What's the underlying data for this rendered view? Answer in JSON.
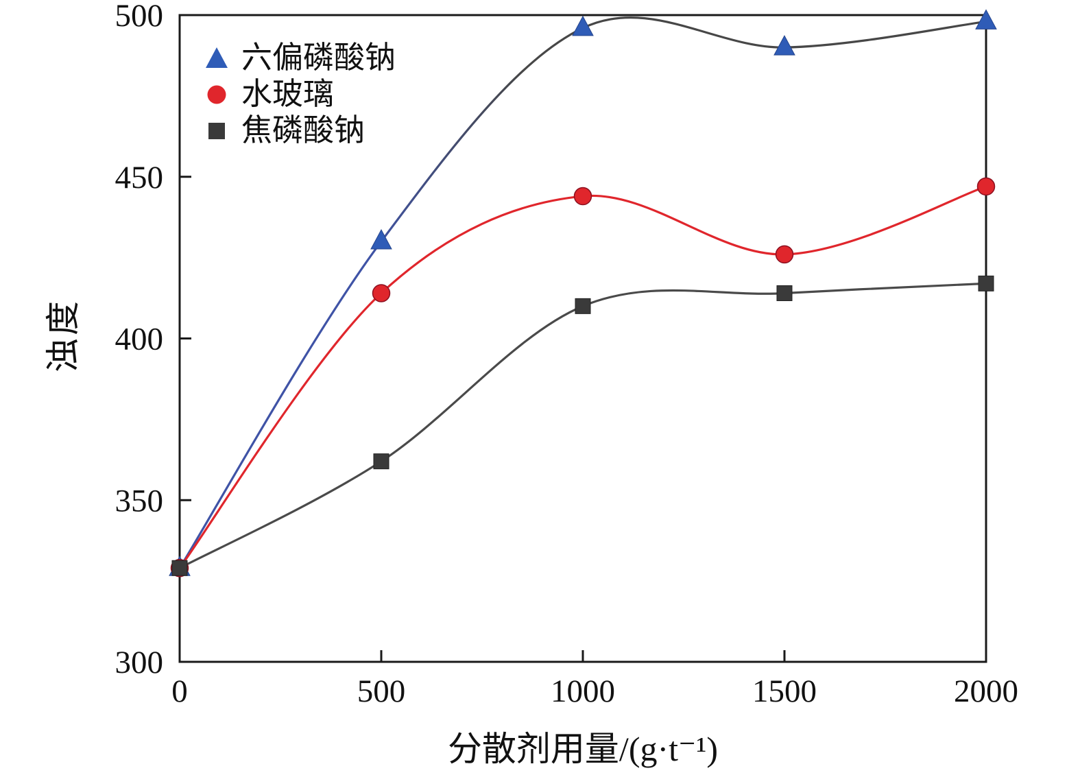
{
  "chart_data": {
    "type": "line",
    "title": "",
    "xlabel": "分散剂用量/(g·t⁻¹)",
    "ylabel": "浊度",
    "xlim": [
      0,
      2000
    ],
    "ylim": [
      300,
      500
    ],
    "x_ticks": [
      "0",
      "500",
      "1000",
      "1500",
      "2000"
    ],
    "y_ticks": [
      "300",
      "350",
      "400",
      "450",
      "500"
    ],
    "grid": false,
    "legend_position": "top-left-inside",
    "frame_color": "#1a1a1a",
    "series": [
      {
        "name": "六偏磷酸钠",
        "marker": "triangle",
        "color": "#2f5cb7",
        "line_color": "#3f53a6",
        "line_color_end": "#474747",
        "x": [
          0,
          500,
          1000,
          1500,
          2000
        ],
        "values": [
          329,
          430,
          496,
          490,
          498
        ]
      },
      {
        "name": "水玻璃",
        "marker": "circle",
        "color": "#e0262c",
        "line_color": "#e0262c",
        "x": [
          0,
          500,
          1000,
          1500,
          2000
        ],
        "values": [
          329,
          414,
          444,
          426,
          447
        ]
      },
      {
        "name": "焦磷酸钠",
        "marker": "square",
        "color": "#3a3a3a",
        "line_color": "#4a4a4a",
        "x": [
          0,
          500,
          1000,
          1500,
          2000
        ],
        "values": [
          329,
          362,
          410,
          414,
          417
        ]
      }
    ]
  }
}
